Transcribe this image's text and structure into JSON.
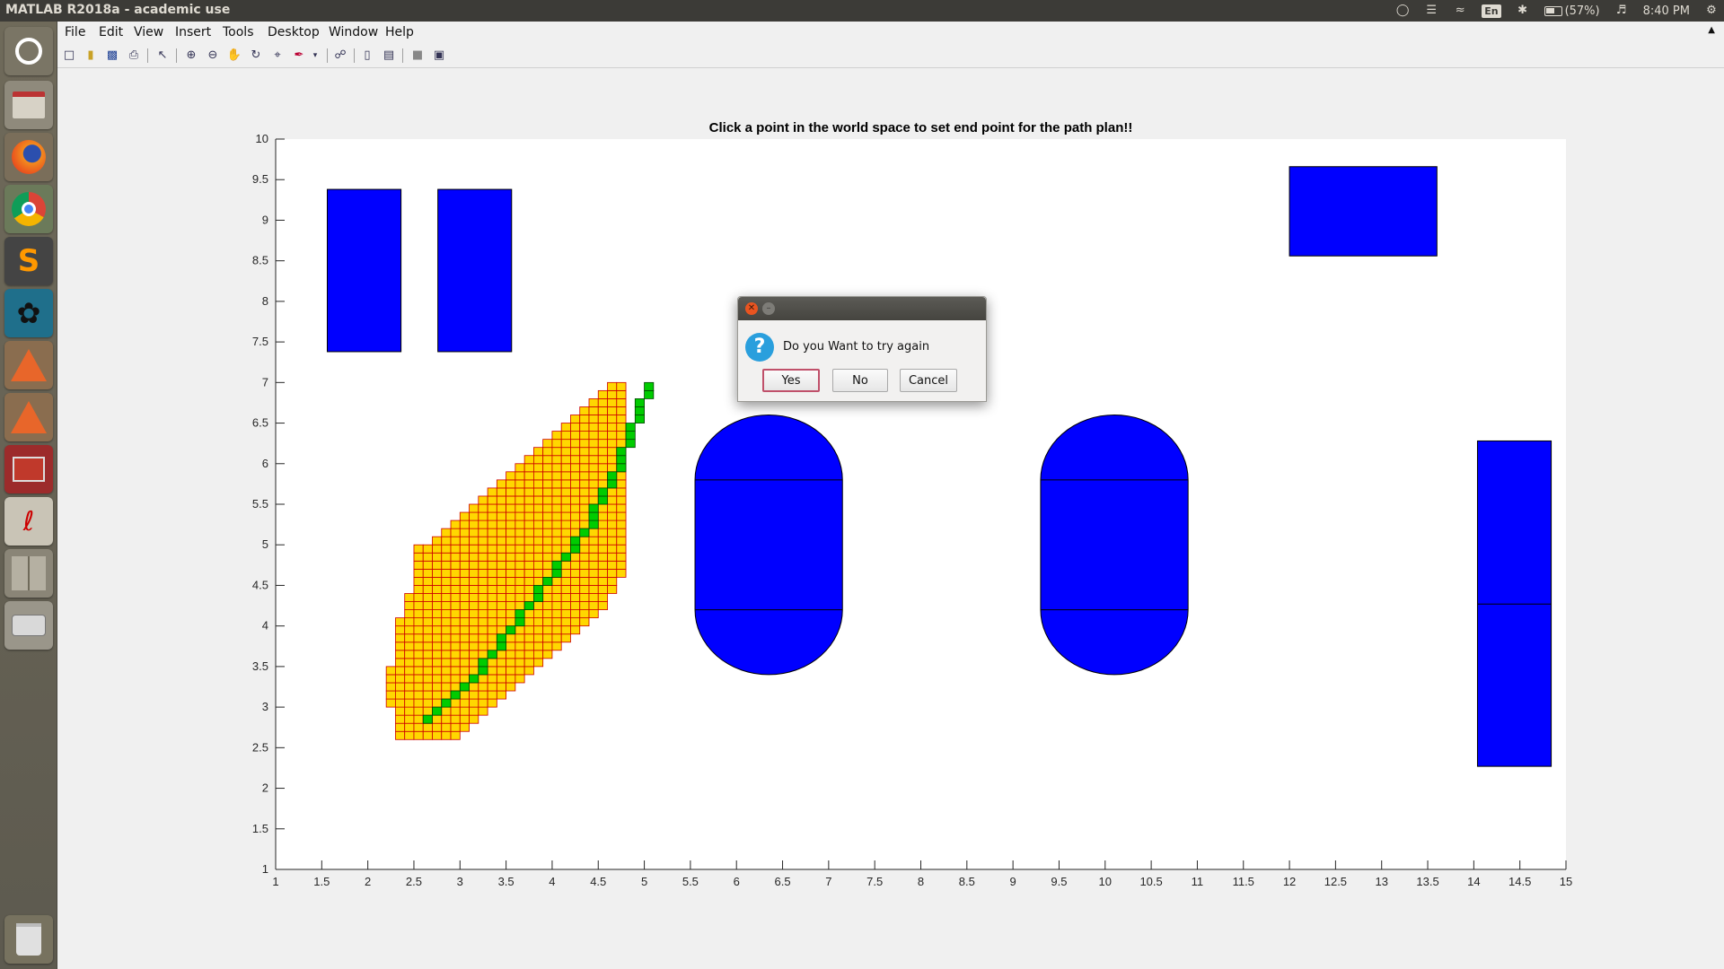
{
  "window": {
    "title": "MATLAB R2018a - academic use"
  },
  "tray": {
    "keyboard": "En",
    "battery": "(57%)",
    "time": "8:40 PM"
  },
  "menu": [
    "File",
    "Edit",
    "View",
    "Insert",
    "Tools",
    "Desktop",
    "Window",
    "Help"
  ],
  "launcher": [
    "dash-icon",
    "files-icon",
    "firefox-icon",
    "chrome-icon",
    "sublime-icon",
    "lizard-icon",
    "matlab-icon",
    "matlab-icon",
    "app-icon",
    "pdf-icon",
    "workspace-icon",
    "disk-icon",
    "trash-icon"
  ],
  "toolbar": [
    "new-figure-icon",
    "open-icon",
    "save-icon",
    "print-icon",
    "pointer-icon",
    "zoom-in-icon",
    "zoom-out-icon",
    "pan-icon",
    "rotate-icon",
    "data-cursor-icon",
    "brush-icon",
    "link-icon",
    "colorbar-icon",
    "legend-icon",
    "hide-tools-icon",
    "dock-icon"
  ],
  "chart_data": {
    "type": "scatter",
    "title": "Click a point in the world space to set end point for the path plan!!",
    "xlim": [
      1,
      15
    ],
    "ylim": [
      1,
      10
    ],
    "xticks": [
      "1",
      "1.5",
      "2",
      "2.5",
      "3",
      "3.5",
      "4",
      "4.5",
      "5",
      "5.5",
      "6",
      "6.5",
      "7",
      "7.5",
      "8",
      "8.5",
      "9",
      "9.5",
      "10",
      "10.5",
      "11",
      "11.5",
      "12",
      "12.5",
      "13",
      "13.5",
      "14",
      "14.5",
      "15"
    ],
    "yticks": [
      "1",
      "1.5",
      "2",
      "2.5",
      "3",
      "3.5",
      "4",
      "4.5",
      "5",
      "5.5",
      "6",
      "6.5",
      "7",
      "7.5",
      "8",
      "8.5",
      "9",
      "9.5",
      "10"
    ],
    "obstacle_color": "#0000ff",
    "explored_color": "#ffd700",
    "explored_edge": "#cc0000",
    "path_color": "#00cc00",
    "rect_obstacles": [
      {
        "x0": 1.56,
        "x1": 2.36,
        "y0": 7.38,
        "y1": 9.38
      },
      {
        "x0": 2.76,
        "x1": 3.56,
        "y0": 7.38,
        "y1": 9.38
      },
      {
        "x0": 12.0,
        "x1": 13.6,
        "y0": 8.56,
        "y1": 9.66
      },
      {
        "x0": 14.04,
        "x1": 14.84,
        "y0": 2.27,
        "y1": 6.28
      }
    ],
    "rect_obstacle_dividers": [
      {
        "x0": 14.04,
        "x1": 14.84,
        "y": 4.27
      }
    ],
    "capsule_obstacles": [
      {
        "x0": 5.55,
        "x1": 7.15,
        "y0": 3.4,
        "y1": 6.6,
        "div_y": [
          4.2,
          5.8
        ]
      },
      {
        "x0": 9.3,
        "x1": 10.9,
        "y0": 3.4,
        "y1": 6.6,
        "div_y": [
          4.2,
          5.8
        ]
      }
    ],
    "explored_cells": {
      "cell": 0.1,
      "columns": [
        [
          2.2,
          3.0,
          3.5
        ],
        [
          2.3,
          2.6,
          4.1
        ],
        [
          2.4,
          2.6,
          4.4
        ],
        [
          2.5,
          2.6,
          5.0
        ],
        [
          2.6,
          2.6,
          5.0
        ],
        [
          2.7,
          2.6,
          5.1
        ],
        [
          2.8,
          2.6,
          5.2
        ],
        [
          2.9,
          2.6,
          5.3
        ],
        [
          3.0,
          2.7,
          5.4
        ],
        [
          3.1,
          2.8,
          5.5
        ],
        [
          3.2,
          2.9,
          5.6
        ],
        [
          3.3,
          3.0,
          5.7
        ],
        [
          3.4,
          3.1,
          5.8
        ],
        [
          3.5,
          3.2,
          5.9
        ],
        [
          3.6,
          3.3,
          6.0
        ],
        [
          3.7,
          3.4,
          6.1
        ],
        [
          3.8,
          3.5,
          6.2
        ],
        [
          3.9,
          3.6,
          6.3
        ],
        [
          4.0,
          3.7,
          6.4
        ],
        [
          4.1,
          3.8,
          6.5
        ],
        [
          4.2,
          3.9,
          6.6
        ],
        [
          4.3,
          4.0,
          6.7
        ],
        [
          4.4,
          4.1,
          6.8
        ],
        [
          4.5,
          4.2,
          6.9
        ],
        [
          4.6,
          4.4,
          7.0
        ],
        [
          4.7,
          4.6,
          7.0
        ]
      ]
    },
    "path": [
      [
        2.6,
        2.8
      ],
      [
        2.7,
        2.9
      ],
      [
        2.8,
        3.0
      ],
      [
        2.9,
        3.1
      ],
      [
        3.0,
        3.2
      ],
      [
        3.1,
        3.3
      ],
      [
        3.2,
        3.4
      ],
      [
        3.2,
        3.5
      ],
      [
        3.3,
        3.6
      ],
      [
        3.4,
        3.7
      ],
      [
        3.4,
        3.8
      ],
      [
        3.5,
        3.9
      ],
      [
        3.6,
        4.0
      ],
      [
        3.6,
        4.1
      ],
      [
        3.7,
        4.2
      ],
      [
        3.8,
        4.3
      ],
      [
        3.8,
        4.4
      ],
      [
        3.9,
        4.5
      ],
      [
        4.0,
        4.6
      ],
      [
        4.0,
        4.7
      ],
      [
        4.1,
        4.8
      ],
      [
        4.2,
        4.9
      ],
      [
        4.2,
        5.0
      ],
      [
        4.3,
        5.1
      ],
      [
        4.4,
        5.2
      ],
      [
        4.4,
        5.3
      ],
      [
        4.4,
        5.4
      ],
      [
        4.5,
        5.5
      ],
      [
        4.5,
        5.6
      ],
      [
        4.6,
        5.7
      ],
      [
        4.6,
        5.8
      ],
      [
        4.7,
        5.9
      ],
      [
        4.7,
        6.0
      ],
      [
        4.7,
        6.1
      ],
      [
        4.8,
        6.2
      ],
      [
        4.8,
        6.3
      ],
      [
        4.8,
        6.4
      ],
      [
        4.9,
        6.5
      ],
      [
        4.9,
        6.6
      ],
      [
        4.9,
        6.7
      ],
      [
        5.0,
        6.8
      ],
      [
        5.0,
        6.9
      ]
    ]
  },
  "dialog": {
    "message": "Do you Want to try again",
    "yes": "Yes",
    "no": "No",
    "cancel": "Cancel"
  }
}
